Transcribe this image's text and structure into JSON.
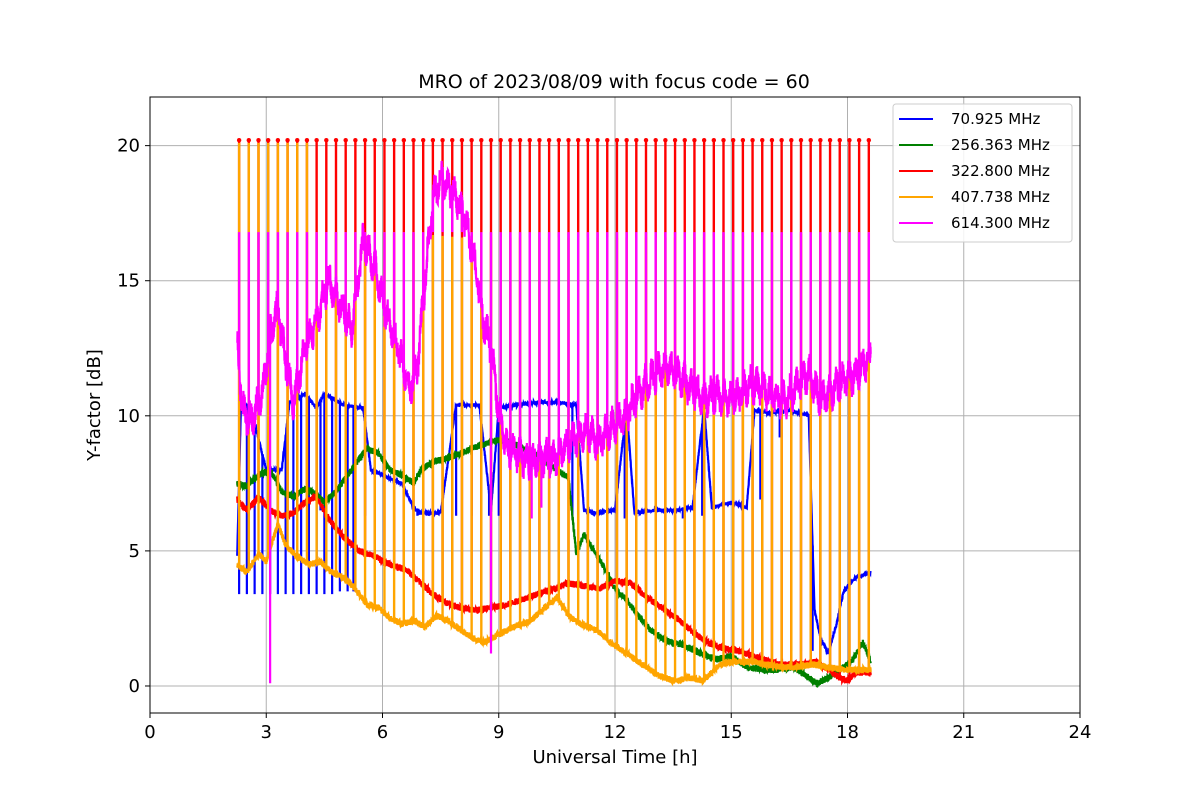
{
  "chart_data": {
    "type": "line",
    "title": "MRO of 2023/08/09 with focus code = 60",
    "xlabel": "Universal Time [h]",
    "ylabel": "Y-factor [dB]",
    "xlim": [
      0,
      24
    ],
    "ylim": [
      -1,
      21.8
    ],
    "xticks": [
      "0",
      "3",
      "6",
      "9",
      "12",
      "15",
      "18",
      "21",
      "24"
    ],
    "yticks": [
      "0",
      "5",
      "10",
      "15",
      "20"
    ],
    "grid": true,
    "legend_position": "top-right",
    "x_start": 2.25,
    "x_end": 18.6,
    "series": [
      {
        "name": "70.925 MHz",
        "color": "#0000ff",
        "baseline": [
          [
            2.25,
            4.8
          ],
          [
            2.35,
            10.5
          ],
          [
            2.6,
            10.3
          ],
          [
            3.0,
            8.0
          ],
          [
            3.4,
            8.0
          ],
          [
            3.6,
            10.5
          ],
          [
            4.0,
            10.8
          ],
          [
            4.3,
            10.3
          ],
          [
            4.5,
            10.8
          ],
          [
            5.0,
            10.4
          ],
          [
            5.5,
            10.3
          ],
          [
            5.7,
            8.0
          ],
          [
            6.0,
            7.8
          ],
          [
            6.3,
            7.6
          ],
          [
            6.5,
            7.5
          ],
          [
            6.8,
            6.6
          ],
          [
            7.0,
            6.4
          ],
          [
            7.5,
            6.4
          ],
          [
            7.9,
            10.4
          ],
          [
            8.5,
            10.4
          ],
          [
            8.8,
            6.5
          ],
          [
            9.0,
            10.3
          ],
          [
            9.5,
            10.4
          ],
          [
            10.0,
            10.5
          ],
          [
            10.5,
            10.5
          ],
          [
            11.0,
            10.4
          ],
          [
            11.2,
            6.5
          ],
          [
            11.5,
            6.4
          ],
          [
            12.0,
            6.5
          ],
          [
            12.3,
            10.3
          ],
          [
            12.5,
            6.4
          ],
          [
            13.0,
            6.5
          ],
          [
            13.5,
            6.5
          ],
          [
            14.0,
            6.6
          ],
          [
            14.3,
            10.3
          ],
          [
            14.5,
            6.6
          ],
          [
            15.0,
            6.8
          ],
          [
            15.4,
            6.6
          ],
          [
            15.6,
            10.2
          ],
          [
            16.0,
            10.1
          ],
          [
            16.5,
            10.2
          ],
          [
            17.0,
            10.0
          ],
          [
            17.15,
            2.8
          ],
          [
            17.3,
            1.8
          ],
          [
            17.5,
            1.2
          ],
          [
            17.7,
            2.2
          ],
          [
            17.9,
            3.5
          ],
          [
            18.2,
            4.0
          ],
          [
            18.6,
            4.2
          ]
        ],
        "cal_tops": [],
        "spike_bottoms": [
          [
            2.3,
            3.4
          ],
          [
            2.5,
            3.4
          ],
          [
            2.7,
            3.4
          ],
          [
            2.9,
            3.4
          ],
          [
            3.1,
            3.4
          ],
          [
            3.3,
            3.4
          ],
          [
            3.5,
            3.4
          ],
          [
            3.7,
            3.4
          ],
          [
            3.9,
            3.4
          ],
          [
            4.1,
            3.4
          ],
          [
            4.3,
            3.4
          ],
          [
            4.5,
            3.4
          ],
          [
            4.7,
            3.4
          ],
          [
            4.9,
            3.5
          ],
          [
            5.1,
            3.5
          ],
          [
            5.25,
            3.5
          ],
          [
            4.4,
            6.5
          ],
          [
            5.55,
            6.3
          ],
          [
            6.55,
            6.2
          ],
          [
            6.9,
            6.3
          ],
          [
            7.9,
            6.3
          ],
          [
            8.3,
            6.3
          ],
          [
            8.55,
            6.3
          ],
          [
            8.75,
            6.3
          ],
          [
            9.0,
            6.3
          ],
          [
            10.9,
            6.3
          ],
          [
            12.25,
            6.2
          ],
          [
            13.75,
            6.2
          ],
          [
            14.25,
            6.3
          ],
          [
            15.75,
            6.9
          ],
          [
            16.25,
            9.2
          ],
          [
            17.1,
            1.3
          ]
        ]
      },
      {
        "name": "256.363 MHz",
        "color": "#008000",
        "baseline": [
          [
            2.25,
            7.5
          ],
          [
            2.5,
            7.4
          ],
          [
            2.8,
            7.8
          ],
          [
            3.1,
            8.0
          ],
          [
            3.4,
            7.2
          ],
          [
            3.7,
            7.0
          ],
          [
            4.0,
            7.3
          ],
          [
            4.3,
            7.1
          ],
          [
            4.5,
            6.8
          ],
          [
            4.8,
            7.2
          ],
          [
            5.0,
            7.6
          ],
          [
            5.3,
            8.2
          ],
          [
            5.6,
            8.8
          ],
          [
            5.9,
            8.6
          ],
          [
            6.2,
            8.0
          ],
          [
            6.5,
            7.8
          ],
          [
            6.8,
            7.5
          ],
          [
            7.0,
            8.0
          ],
          [
            7.3,
            8.3
          ],
          [
            7.6,
            8.4
          ],
          [
            8.0,
            8.6
          ],
          [
            8.5,
            8.9
          ],
          [
            9.0,
            9.1
          ],
          [
            9.5,
            8.9
          ],
          [
            10.0,
            8.5
          ],
          [
            10.4,
            8.1
          ],
          [
            10.8,
            7.7
          ],
          [
            11.0,
            4.9
          ],
          [
            11.2,
            5.6
          ],
          [
            11.5,
            4.9
          ],
          [
            11.8,
            4.2
          ],
          [
            12.0,
            3.6
          ],
          [
            12.3,
            3.2
          ],
          [
            12.6,
            2.6
          ],
          [
            12.9,
            2.1
          ],
          [
            13.2,
            1.8
          ],
          [
            13.5,
            1.6
          ],
          [
            13.8,
            1.5
          ],
          [
            14.2,
            1.2
          ],
          [
            14.6,
            1.0
          ],
          [
            15.0,
            1.1
          ],
          [
            15.4,
            0.7
          ],
          [
            15.8,
            0.6
          ],
          [
            16.2,
            0.6
          ],
          [
            16.6,
            0.7
          ],
          [
            17.0,
            0.3
          ],
          [
            17.2,
            0.1
          ],
          [
            17.5,
            0.3
          ],
          [
            17.8,
            0.6
          ],
          [
            18.1,
            0.9
          ],
          [
            18.4,
            1.6
          ],
          [
            18.6,
            0.9
          ]
        ],
        "cal_tops": [],
        "spike_bottoms": []
      },
      {
        "name": "322.800 MHz",
        "color": "#ff0000",
        "baseline": [
          [
            2.25,
            6.9
          ],
          [
            2.5,
            6.5
          ],
          [
            2.8,
            7.0
          ],
          [
            3.1,
            6.5
          ],
          [
            3.4,
            6.3
          ],
          [
            3.7,
            6.4
          ],
          [
            4.0,
            6.8
          ],
          [
            4.3,
            7.0
          ],
          [
            4.6,
            6.2
          ],
          [
            5.0,
            5.5
          ],
          [
            5.4,
            5.0
          ],
          [
            5.8,
            4.8
          ],
          [
            6.2,
            4.5
          ],
          [
            6.6,
            4.3
          ],
          [
            7.0,
            3.8
          ],
          [
            7.3,
            3.4
          ],
          [
            7.6,
            3.1
          ],
          [
            8.0,
            2.9
          ],
          [
            8.4,
            2.8
          ],
          [
            8.8,
            2.9
          ],
          [
            9.2,
            3.0
          ],
          [
            9.6,
            3.2
          ],
          [
            10.0,
            3.4
          ],
          [
            10.4,
            3.6
          ],
          [
            10.8,
            3.8
          ],
          [
            11.2,
            3.7
          ],
          [
            11.6,
            3.6
          ],
          [
            12.0,
            3.9
          ],
          [
            12.4,
            3.8
          ],
          [
            12.8,
            3.3
          ],
          [
            13.2,
            2.9
          ],
          [
            13.6,
            2.5
          ],
          [
            14.0,
            2.0
          ],
          [
            14.4,
            1.6
          ],
          [
            14.8,
            1.4
          ],
          [
            15.2,
            1.3
          ],
          [
            15.6,
            1.1
          ],
          [
            16.0,
            0.9
          ],
          [
            16.4,
            0.8
          ],
          [
            16.8,
            0.8
          ],
          [
            17.2,
            0.9
          ],
          [
            17.5,
            0.6
          ],
          [
            17.8,
            0.3
          ],
          [
            18.0,
            0.2
          ],
          [
            18.2,
            0.5
          ],
          [
            18.6,
            0.5
          ]
        ],
        "cal_tops": [],
        "spike_bottoms": []
      },
      {
        "name": "407.738 MHz",
        "color": "#ffa500",
        "baseline": [
          [
            2.25,
            4.5
          ],
          [
            2.5,
            4.2
          ],
          [
            2.8,
            4.9
          ],
          [
            3.0,
            4.6
          ],
          [
            3.3,
            6.0
          ],
          [
            3.5,
            5.2
          ],
          [
            3.8,
            4.8
          ],
          [
            4.1,
            4.5
          ],
          [
            4.4,
            4.6
          ],
          [
            4.7,
            4.2
          ],
          [
            5.0,
            4.0
          ],
          [
            5.3,
            3.6
          ],
          [
            5.6,
            3.0
          ],
          [
            5.9,
            2.9
          ],
          [
            6.2,
            2.5
          ],
          [
            6.5,
            2.3
          ],
          [
            6.8,
            2.4
          ],
          [
            7.1,
            2.2
          ],
          [
            7.4,
            2.6
          ],
          [
            7.7,
            2.4
          ],
          [
            8.0,
            2.1
          ],
          [
            8.3,
            1.8
          ],
          [
            8.6,
            1.6
          ],
          [
            9.0,
            1.9
          ],
          [
            9.4,
            2.2
          ],
          [
            9.8,
            2.4
          ],
          [
            10.2,
            2.9
          ],
          [
            10.5,
            3.3
          ],
          [
            10.8,
            2.6
          ],
          [
            11.1,
            2.3
          ],
          [
            11.5,
            2.1
          ],
          [
            11.9,
            1.6
          ],
          [
            12.3,
            1.2
          ],
          [
            12.7,
            0.8
          ],
          [
            13.1,
            0.4
          ],
          [
            13.5,
            0.2
          ],
          [
            13.9,
            0.3
          ],
          [
            14.3,
            0.2
          ],
          [
            14.7,
            0.8
          ],
          [
            15.1,
            0.9
          ],
          [
            15.5,
            0.9
          ],
          [
            15.9,
            0.8
          ],
          [
            16.3,
            0.7
          ],
          [
            16.7,
            0.7
          ],
          [
            17.1,
            0.8
          ],
          [
            17.5,
            0.7
          ],
          [
            17.9,
            0.6
          ],
          [
            18.3,
            0.6
          ],
          [
            18.6,
            0.6
          ]
        ],
        "cal_tops": [
          [
            2.25,
            17.5
          ],
          [
            2.4,
            20.1
          ],
          [
            4.0,
            20.1
          ],
          [
            4.2,
            16.8
          ],
          [
            5.0,
            16.8
          ],
          [
            6.5,
            16.8
          ],
          [
            8.0,
            16.6
          ],
          [
            9.0,
            16.6
          ],
          [
            10.0,
            16.6
          ],
          [
            12.0,
            16.6
          ],
          [
            14.0,
            16.6
          ],
          [
            16.0,
            16.7
          ],
          [
            18.6,
            16.8
          ]
        ],
        "spike_bottoms": []
      },
      {
        "name": "614.300 MHz",
        "color": "#ff00ff",
        "baseline": [
          [
            2.25,
            12.5
          ],
          [
            2.4,
            10.2
          ],
          [
            2.6,
            9.8
          ],
          [
            2.9,
            10.8
          ],
          [
            3.1,
            13.0
          ],
          [
            3.3,
            14.0
          ],
          [
            3.5,
            12.0
          ],
          [
            3.7,
            10.5
          ],
          [
            4.0,
            12.5
          ],
          [
            4.3,
            13.5
          ],
          [
            4.6,
            15.0
          ],
          [
            4.9,
            14.2
          ],
          [
            5.2,
            13.2
          ],
          [
            5.5,
            16.5
          ],
          [
            5.8,
            15.5
          ],
          [
            6.1,
            13.8
          ],
          [
            6.4,
            12.5
          ],
          [
            6.7,
            11.0
          ],
          [
            6.9,
            11.8
          ],
          [
            7.1,
            15.0
          ],
          [
            7.3,
            18.0
          ],
          [
            7.5,
            18.8
          ],
          [
            7.8,
            18.3
          ],
          [
            8.1,
            17.5
          ],
          [
            8.4,
            15.5
          ],
          [
            8.6,
            13.5
          ],
          [
            8.8,
            12.5
          ],
          [
            9.0,
            10.2
          ],
          [
            9.2,
            8.8
          ],
          [
            9.5,
            8.6
          ],
          [
            9.8,
            8.2
          ],
          [
            10.1,
            8.5
          ],
          [
            10.4,
            8.4
          ],
          [
            10.7,
            8.8
          ],
          [
            11.0,
            9.2
          ],
          [
            11.3,
            9.4
          ],
          [
            11.6,
            9.0
          ],
          [
            11.9,
            9.6
          ],
          [
            12.2,
            9.8
          ],
          [
            12.5,
            10.6
          ],
          [
            12.8,
            11.2
          ],
          [
            13.1,
            11.6
          ],
          [
            13.4,
            11.8
          ],
          [
            13.7,
            11.4
          ],
          [
            14.0,
            11.0
          ],
          [
            14.3,
            10.6
          ],
          [
            14.6,
            10.8
          ],
          [
            14.9,
            10.6
          ],
          [
            15.2,
            10.8
          ],
          [
            15.5,
            11.2
          ],
          [
            15.8,
            11.0
          ],
          [
            16.1,
            10.7
          ],
          [
            16.4,
            10.6
          ],
          [
            16.7,
            11.1
          ],
          [
            17.0,
            11.6
          ],
          [
            17.3,
            10.6
          ],
          [
            17.6,
            10.9
          ],
          [
            17.9,
            11.3
          ],
          [
            18.2,
            11.5
          ],
          [
            18.6,
            12.2
          ]
        ],
        "cal_tops": [],
        "spike_bottoms": [
          [
            3.1,
            0.1
          ],
          [
            8.8,
            1.2
          ],
          [
            10.1,
            6.6
          ],
          [
            9.85,
            6.2
          ]
        ]
      }
    ]
  }
}
